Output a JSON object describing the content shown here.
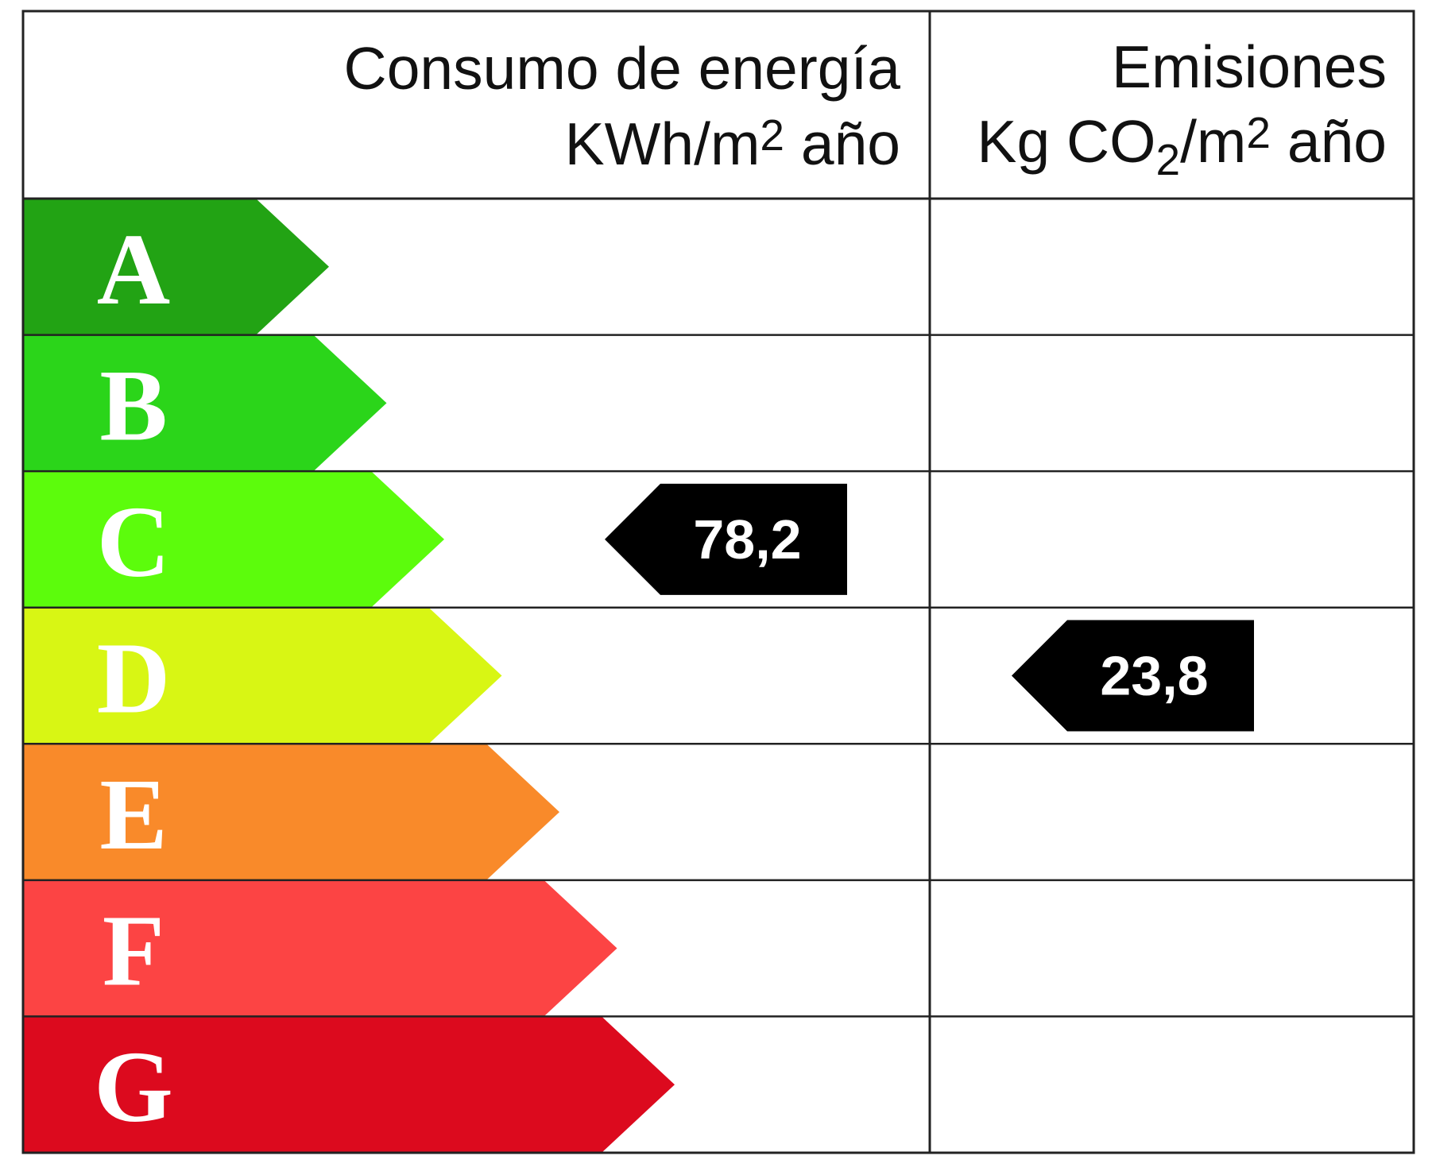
{
  "header": {
    "energy": {
      "title": "Consumo de energía",
      "unit": [
        "KWh/m",
        "2",
        " año"
      ]
    },
    "emissions": {
      "title": "Emisiones",
      "unit": [
        "Kg CO",
        "2",
        "/m",
        "2",
        " año"
      ]
    }
  },
  "rows": [
    {
      "letter": "A",
      "color": "#22a314",
      "energy": null,
      "emissions": null
    },
    {
      "letter": "B",
      "color": "#2bd51a",
      "energy": null,
      "emissions": null
    },
    {
      "letter": "C",
      "color": "#5cfc0c",
      "energy": "78,2",
      "emissions": null
    },
    {
      "letter": "D",
      "color": "#d8f614",
      "energy": null,
      "emissions": "23,8"
    },
    {
      "letter": "E",
      "color": "#f98a2a",
      "energy": null,
      "emissions": null
    },
    {
      "letter": "F",
      "color": "#fc4444",
      "energy": null,
      "emissions": null
    },
    {
      "letter": "G",
      "color": "#dc0a1e",
      "energy": null,
      "emissions": null
    }
  ]
}
